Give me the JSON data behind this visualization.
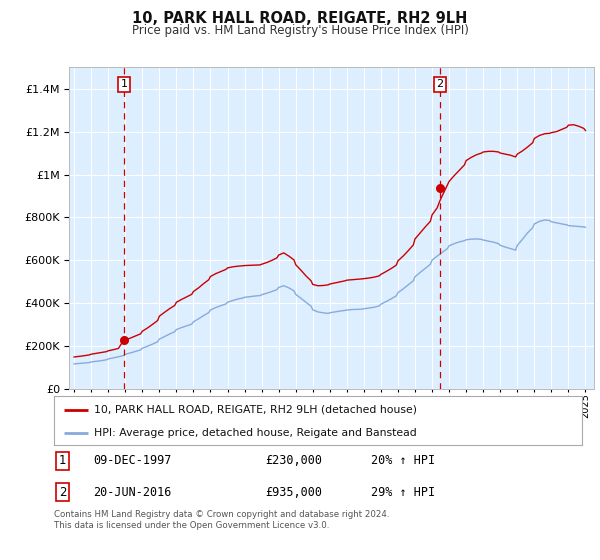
{
  "title": "10, PARK HALL ROAD, REIGATE, RH2 9LH",
  "subtitle": "Price paid vs. HM Land Registry's House Price Index (HPI)",
  "plot_bg_color": "#ddeeff",
  "red_line_color": "#cc0000",
  "blue_line_color": "#88aadd",
  "legend_label_red": "10, PARK HALL ROAD, REIGATE, RH2 9LH (detached house)",
  "legend_label_blue": "HPI: Average price, detached house, Reigate and Banstead",
  "note1_label": "1",
  "note1_date": "09-DEC-1997",
  "note1_price": "£230,000",
  "note1_hpi": "20% ↑ HPI",
  "note2_label": "2",
  "note2_date": "20-JUN-2016",
  "note2_price": "£935,000",
  "note2_hpi": "29% ↑ HPI",
  "footer": "Contains HM Land Registry data © Crown copyright and database right 2024.\nThis data is licensed under the Open Government Licence v3.0.",
  "ylim": [
    0,
    1500000
  ],
  "xlim_start": 1994.7,
  "xlim_end": 2025.5,
  "t1_x": 1997.92,
  "t1_y": 230000,
  "t2_x": 2016.46,
  "t2_y": 935000,
  "red_x": [
    1995.0,
    1995.3,
    1995.6,
    1995.9,
    1996.0,
    1996.3,
    1996.6,
    1996.9,
    1997.0,
    1997.3,
    1997.6,
    1997.92,
    1998.0,
    1998.3,
    1998.6,
    1998.9,
    1999.0,
    1999.3,
    1999.6,
    1999.9,
    2000.0,
    2000.3,
    2000.6,
    2000.9,
    2001.0,
    2001.3,
    2001.6,
    2001.9,
    2002.0,
    2002.3,
    2002.6,
    2002.9,
    2003.0,
    2003.3,
    2003.6,
    2003.9,
    2004.0,
    2004.3,
    2004.6,
    2004.9,
    2005.0,
    2005.3,
    2005.6,
    2005.9,
    2006.0,
    2006.3,
    2006.6,
    2006.9,
    2007.0,
    2007.3,
    2007.6,
    2007.9,
    2008.0,
    2008.3,
    2008.6,
    2008.9,
    2009.0,
    2009.3,
    2009.6,
    2009.9,
    2010.0,
    2010.3,
    2010.6,
    2010.9,
    2011.0,
    2011.3,
    2011.6,
    2011.9,
    2012.0,
    2012.3,
    2012.6,
    2012.9,
    2013.0,
    2013.3,
    2013.6,
    2013.9,
    2014.0,
    2014.3,
    2014.6,
    2014.9,
    2015.0,
    2015.3,
    2015.6,
    2015.9,
    2016.0,
    2016.3,
    2016.46,
    2016.8,
    2017.0,
    2017.3,
    2017.6,
    2017.9,
    2018.0,
    2018.3,
    2018.6,
    2018.9,
    2019.0,
    2019.3,
    2019.6,
    2019.9,
    2020.0,
    2020.3,
    2020.6,
    2020.9,
    2021.0,
    2021.3,
    2021.6,
    2021.9,
    2022.0,
    2022.3,
    2022.6,
    2022.9,
    2023.0,
    2023.3,
    2023.6,
    2023.9,
    2024.0,
    2024.3,
    2024.6,
    2024.9,
    2025.0
  ],
  "red_y": [
    150000,
    153000,
    156000,
    160000,
    163000,
    167000,
    171000,
    175000,
    179000,
    184000,
    190000,
    230000,
    230000,
    238000,
    248000,
    258000,
    270000,
    285000,
    302000,
    320000,
    340000,
    358000,
    375000,
    390000,
    405000,
    418000,
    430000,
    442000,
    455000,
    472000,
    492000,
    510000,
    525000,
    538000,
    548000,
    558000,
    565000,
    570000,
    573000,
    575000,
    576000,
    577000,
    578000,
    579000,
    582000,
    590000,
    600000,
    612000,
    625000,
    635000,
    620000,
    602000,
    580000,
    555000,
    528000,
    505000,
    488000,
    482000,
    483000,
    486000,
    490000,
    495000,
    500000,
    505000,
    508000,
    510000,
    512000,
    514000,
    515000,
    518000,
    522000,
    528000,
    535000,
    548000,
    562000,
    578000,
    598000,
    620000,
    645000,
    672000,
    700000,
    728000,
    756000,
    782000,
    812000,
    845000,
    878000,
    935000,
    968000,
    995000,
    1020000,
    1045000,
    1065000,
    1080000,
    1092000,
    1100000,
    1105000,
    1108000,
    1108000,
    1105000,
    1100000,
    1095000,
    1090000,
    1082000,
    1095000,
    1110000,
    1128000,
    1148000,
    1168000,
    1182000,
    1190000,
    1192000,
    1195000,
    1200000,
    1210000,
    1220000,
    1230000,
    1232000,
    1225000,
    1215000,
    1205000
  ],
  "blue_x": [
    1995.0,
    1995.3,
    1995.6,
    1995.9,
    1996.0,
    1996.3,
    1996.6,
    1996.9,
    1997.0,
    1997.3,
    1997.6,
    1997.9,
    1998.0,
    1998.3,
    1998.6,
    1998.9,
    1999.0,
    1999.3,
    1999.6,
    1999.9,
    2000.0,
    2000.3,
    2000.6,
    2000.9,
    2001.0,
    2001.3,
    2001.6,
    2001.9,
    2002.0,
    2002.3,
    2002.6,
    2002.9,
    2003.0,
    2003.3,
    2003.6,
    2003.9,
    2004.0,
    2004.3,
    2004.6,
    2004.9,
    2005.0,
    2005.3,
    2005.6,
    2005.9,
    2006.0,
    2006.3,
    2006.6,
    2006.9,
    2007.0,
    2007.3,
    2007.6,
    2007.9,
    2008.0,
    2008.3,
    2008.6,
    2008.9,
    2009.0,
    2009.3,
    2009.6,
    2009.9,
    2010.0,
    2010.3,
    2010.6,
    2010.9,
    2011.0,
    2011.3,
    2011.6,
    2011.9,
    2012.0,
    2012.3,
    2012.6,
    2012.9,
    2013.0,
    2013.3,
    2013.6,
    2013.9,
    2014.0,
    2014.3,
    2014.6,
    2014.9,
    2015.0,
    2015.3,
    2015.6,
    2015.9,
    2016.0,
    2016.3,
    2016.6,
    2016.9,
    2017.0,
    2017.3,
    2017.6,
    2017.9,
    2018.0,
    2018.3,
    2018.6,
    2018.9,
    2019.0,
    2019.3,
    2019.6,
    2019.9,
    2020.0,
    2020.3,
    2020.6,
    2020.9,
    2021.0,
    2021.3,
    2021.6,
    2021.9,
    2022.0,
    2022.3,
    2022.6,
    2022.9,
    2023.0,
    2023.3,
    2023.6,
    2023.9,
    2024.0,
    2024.3,
    2024.6,
    2024.9,
    2025.0
  ],
  "blue_y": [
    118000,
    120000,
    122000,
    124000,
    127000,
    130000,
    133000,
    137000,
    141000,
    146000,
    151000,
    157000,
    163000,
    169000,
    176000,
    183000,
    191000,
    200000,
    210000,
    221000,
    233000,
    245000,
    257000,
    268000,
    278000,
    287000,
    295000,
    303000,
    314000,
    328000,
    343000,
    357000,
    369000,
    380000,
    389000,
    397000,
    405000,
    413000,
    420000,
    425000,
    428000,
    431000,
    434000,
    436000,
    440000,
    447000,
    455000,
    464000,
    474000,
    482000,
    472000,
    458000,
    442000,
    424000,
    405000,
    387000,
    370000,
    360000,
    356000,
    353000,
    356000,
    360000,
    364000,
    367000,
    369000,
    371000,
    372000,
    373000,
    375000,
    378000,
    382000,
    388000,
    396000,
    408000,
    421000,
    435000,
    450000,
    467000,
    486000,
    505000,
    524000,
    544000,
    563000,
    582000,
    601000,
    620000,
    638000,
    655000,
    668000,
    678000,
    686000,
    692000,
    696000,
    699000,
    700000,
    698000,
    695000,
    690000,
    685000,
    678000,
    670000,
    662000,
    655000,
    648000,
    670000,
    698000,
    728000,
    752000,
    770000,
    782000,
    788000,
    786000,
    780000,
    775000,
    770000,
    766000,
    762000,
    760000,
    758000,
    756000,
    754000
  ]
}
